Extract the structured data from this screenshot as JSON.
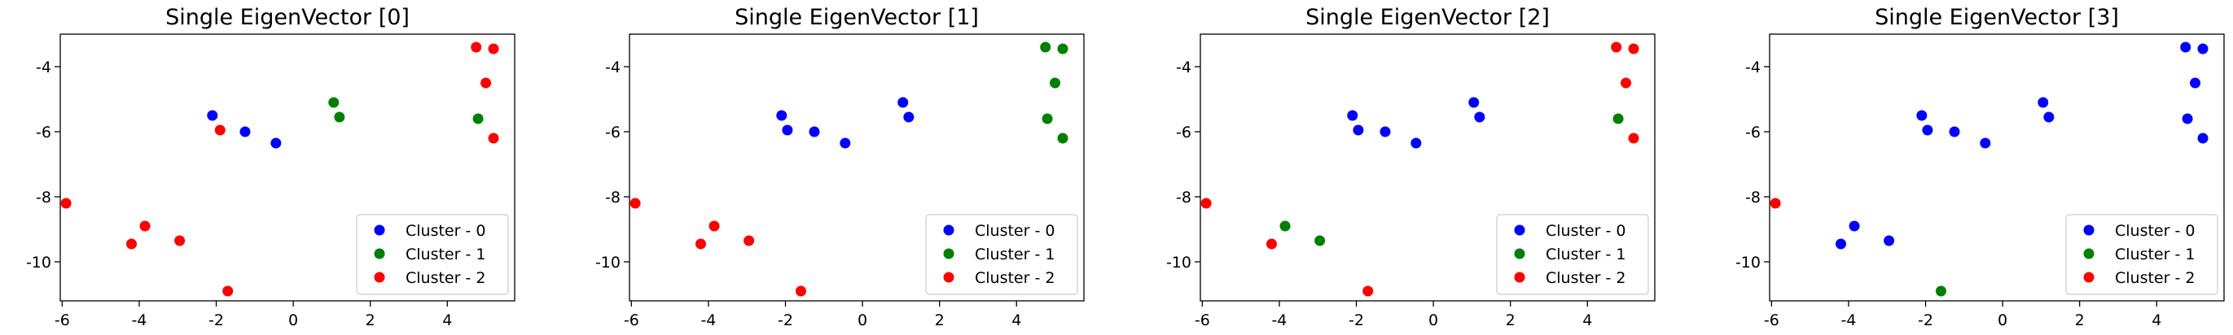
{
  "chart_data": [
    {
      "type": "scatter",
      "title": "Single EigenVector [0]",
      "xlim": [
        -6.05,
        5.75
      ],
      "ylim": [
        -11.2,
        -3.0
      ],
      "xticks": [
        "-6",
        "-4",
        "-2",
        "0",
        "2",
        "4"
      ],
      "yticks": [
        "-4",
        "-6",
        "-8",
        "-10"
      ],
      "legend_position": "lower right",
      "series": [
        {
          "name": "Cluster - 0",
          "color": "#0000ff",
          "x": [
            -2.1,
            -1.25,
            -0.45
          ],
          "y": [
            -5.5,
            -6.0,
            -6.35
          ]
        },
        {
          "name": "Cluster - 1",
          "color": "#008000",
          "x": [
            1.05,
            1.2,
            4.8
          ],
          "y": [
            -5.1,
            -5.55,
            -5.6
          ]
        },
        {
          "name": "Cluster - 2",
          "color": "#ff0000",
          "x": [
            4.75,
            5.2,
            5.0,
            5.2,
            -1.9,
            -5.9,
            -3.85,
            -4.2,
            -2.95,
            -1.7
          ],
          "y": [
            -3.4,
            -3.45,
            -4.5,
            -6.2,
            -5.95,
            -8.2,
            -8.9,
            -9.45,
            -9.35,
            -10.9
          ]
        }
      ]
    },
    {
      "type": "scatter",
      "title": "Single EigenVector [1]",
      "xlim": [
        -6.05,
        5.75
      ],
      "ylim": [
        -11.2,
        -3.0
      ],
      "xticks": [
        "-6",
        "-4",
        "-2",
        "0",
        "2",
        "4"
      ],
      "yticks": [
        "-4",
        "-6",
        "-8",
        "-10"
      ],
      "legend_position": "lower right",
      "series": [
        {
          "name": "Cluster - 0",
          "color": "#0000ff",
          "x": [
            -2.1,
            -1.95,
            -1.25,
            -0.45,
            1.05,
            1.2
          ],
          "y": [
            -5.5,
            -5.95,
            -6.0,
            -6.35,
            -5.1,
            -5.55
          ]
        },
        {
          "name": "Cluster - 1",
          "color": "#008000",
          "x": [
            4.75,
            5.2,
            5.0,
            4.8,
            5.2
          ],
          "y": [
            -3.4,
            -3.45,
            -4.5,
            -5.6,
            -6.2
          ]
        },
        {
          "name": "Cluster - 2",
          "color": "#ff0000",
          "x": [
            -5.9,
            -3.85,
            -4.2,
            -2.95,
            -1.6
          ],
          "y": [
            -8.2,
            -8.9,
            -9.45,
            -9.35,
            -10.9
          ]
        }
      ]
    },
    {
      "type": "scatter",
      "title": "Single EigenVector [2]",
      "xlim": [
        -6.05,
        5.75
      ],
      "ylim": [
        -11.2,
        -3.0
      ],
      "xticks": [
        "-6",
        "-4",
        "-2",
        "0",
        "2",
        "4"
      ],
      "yticks": [
        "-4",
        "-6",
        "-8",
        "-10"
      ],
      "legend_position": "lower right",
      "series": [
        {
          "name": "Cluster - 0",
          "color": "#0000ff",
          "x": [
            -2.1,
            -1.95,
            -1.25,
            -0.45,
            1.05,
            1.2
          ],
          "y": [
            -5.5,
            -5.95,
            -6.0,
            -6.35,
            -5.1,
            -5.55
          ]
        },
        {
          "name": "Cluster - 1",
          "color": "#008000",
          "x": [
            4.8,
            -3.85,
            -2.95
          ],
          "y": [
            -5.6,
            -8.9,
            -9.35
          ]
        },
        {
          "name": "Cluster - 2",
          "color": "#ff0000",
          "x": [
            4.75,
            5.2,
            5.0,
            5.2,
            -5.9,
            -4.2,
            -1.7
          ],
          "y": [
            -3.4,
            -3.45,
            -4.5,
            -6.2,
            -8.2,
            -9.45,
            -10.9
          ]
        }
      ]
    },
    {
      "type": "scatter",
      "title": "Single EigenVector [3]",
      "xlim": [
        -6.05,
        5.75
      ],
      "ylim": [
        -11.2,
        -3.0
      ],
      "xticks": [
        "-6",
        "-4",
        "-2",
        "0",
        "2",
        "4"
      ],
      "yticks": [
        "-4",
        "-6",
        "-8",
        "-10"
      ],
      "legend_position": "lower right",
      "series": [
        {
          "name": "Cluster - 0",
          "color": "#0000ff",
          "x": [
            -2.1,
            -1.95,
            -1.25,
            -0.45,
            1.05,
            1.2,
            4.75,
            5.2,
            5.0,
            4.8,
            5.2,
            -3.85,
            -4.2,
            -2.95
          ],
          "y": [
            -5.5,
            -5.95,
            -6.0,
            -6.35,
            -5.1,
            -5.55,
            -3.4,
            -3.45,
            -4.5,
            -5.6,
            -6.2,
            -8.9,
            -9.45,
            -9.35
          ]
        },
        {
          "name": "Cluster - 1",
          "color": "#008000",
          "x": [
            -1.6
          ],
          "y": [
            -10.9
          ]
        },
        {
          "name": "Cluster - 2",
          "color": "#ff0000",
          "x": [
            -5.9
          ],
          "y": [
            -8.2
          ]
        }
      ]
    }
  ]
}
